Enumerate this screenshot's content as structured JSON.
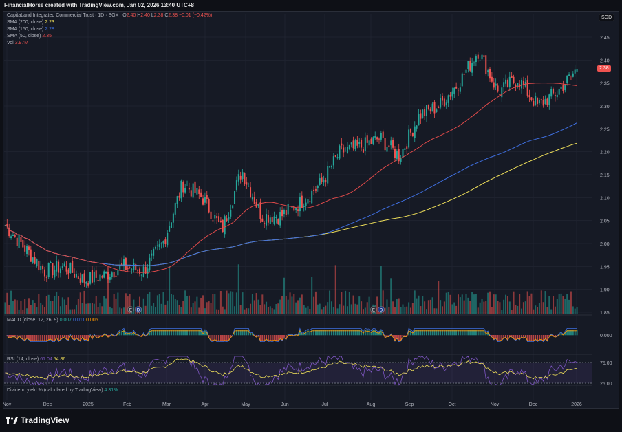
{
  "header": {
    "caption": "FinancialHorse created with TradingView.com, Jan 02, 2026 13:40 UTC+8"
  },
  "currency_badge": "SGD",
  "last_price_badge": "2.38",
  "legend": {
    "symbol": "CapitaLand Integrated Commercial Trust · 1D · SGX",
    "ohlc": {
      "o_label": "O",
      "o": "2.40",
      "h_label": "H",
      "h": "2.40",
      "l_label": "L",
      "l": "2.38",
      "c_label": "C",
      "c": "2.38",
      "chg": "−0.01 (−0.42%)"
    },
    "sma200": {
      "label": "SMA (200, close)",
      "value": "2.23"
    },
    "sma150": {
      "label": "SMA (150, close)",
      "value": "2.28"
    },
    "sma50": {
      "label": "SMA (50, close)",
      "value": "2.35"
    },
    "vol": {
      "label": "Vol",
      "value": "3.97M"
    }
  },
  "macd_legend": {
    "label": "MACD (close, 12, 26, 9)",
    "v1": "0.007",
    "v2": "0.011",
    "v3": "0.005"
  },
  "rsi_legend": {
    "label": "RSI (14, close)",
    "v1": "61.04",
    "v2": "54.86"
  },
  "div_legend": {
    "label": "Dividend yield % (calculated by TradingView)",
    "value": "4.31%"
  },
  "footer": {
    "brand": "TradingView"
  },
  "colors": {
    "up": "#26a69a",
    "down": "#ef5350",
    "sma200": "#f0e05a",
    "sma150": "#3f6fe0",
    "sma50": "#e04a4a",
    "rsi": "#7e57c2"
  },
  "chart_data": {
    "type": "candlestick",
    "y_axis": {
      "ticks": [
        "2.45",
        "2.40",
        "2.35",
        "2.30",
        "2.25",
        "2.20",
        "2.15",
        "2.10",
        "2.05",
        "2.00",
        "1.95",
        "1.90",
        "1.85"
      ],
      "range": [
        1.85,
        2.45
      ]
    },
    "x_axis": {
      "ticks": [
        "Nov",
        "Dec",
        "2025",
        "Feb",
        "Mar",
        "Apr",
        "May",
        "Jun",
        "Jul",
        "Aug",
        "Sep",
        "Oct",
        "Nov",
        "Dec",
        "2026"
      ]
    },
    "macd_axis": [
      "0.000"
    ],
    "rsi_axis": [
      "75.00",
      "25.00"
    ],
    "event_markers": [
      {
        "label": "E",
        "position": "Jan 2025"
      },
      {
        "label": "D",
        "position": "Jan 2025"
      },
      {
        "label": "E",
        "position": "Jul 2025"
      },
      {
        "label": "D",
        "position": "Jul 2025"
      }
    ],
    "anchors": [
      {
        "d": "Nov",
        "p": 2.04
      },
      {
        "d": "Nov-mid",
        "p": 1.99
      },
      {
        "d": "Dec",
        "p": 1.94
      },
      {
        "d": "Dec-mid",
        "p": 1.95
      },
      {
        "d": "2025",
        "p": 1.92
      },
      {
        "d": "Jan-mid",
        "p": 1.93
      },
      {
        "d": "Feb",
        "p": 1.95
      },
      {
        "d": "Feb-mid",
        "p": 1.94
      },
      {
        "d": "Mar",
        "p": 2.0
      },
      {
        "d": "Mar-mid",
        "p": 2.13
      },
      {
        "d": "Apr",
        "p": 2.1
      },
      {
        "d": "Apr-low",
        "p": 2.03
      },
      {
        "d": "Apr-late",
        "p": 2.16
      },
      {
        "d": "May",
        "p": 2.06
      },
      {
        "d": "May-mid",
        "p": 2.06
      },
      {
        "d": "Jun",
        "p": 2.09
      },
      {
        "d": "Jun-mid",
        "p": 2.13
      },
      {
        "d": "Jul",
        "p": 2.2
      },
      {
        "d": "Jul-mid",
        "p": 2.21
      },
      {
        "d": "Aug",
        "p": 2.23
      },
      {
        "d": "Aug-mid",
        "p": 2.19
      },
      {
        "d": "Sep",
        "p": 2.28
      },
      {
        "d": "Sep-mid",
        "p": 2.3
      },
      {
        "d": "Oct",
        "p": 2.35
      },
      {
        "d": "Oct-mid",
        "p": 2.42
      },
      {
        "d": "Nov",
        "p": 2.33
      },
      {
        "d": "Nov-mid",
        "p": 2.36
      },
      {
        "d": "Dec",
        "p": 2.3
      },
      {
        "d": "Dec-mid",
        "p": 2.33
      },
      {
        "d": "2026",
        "p": 2.38
      }
    ]
  }
}
